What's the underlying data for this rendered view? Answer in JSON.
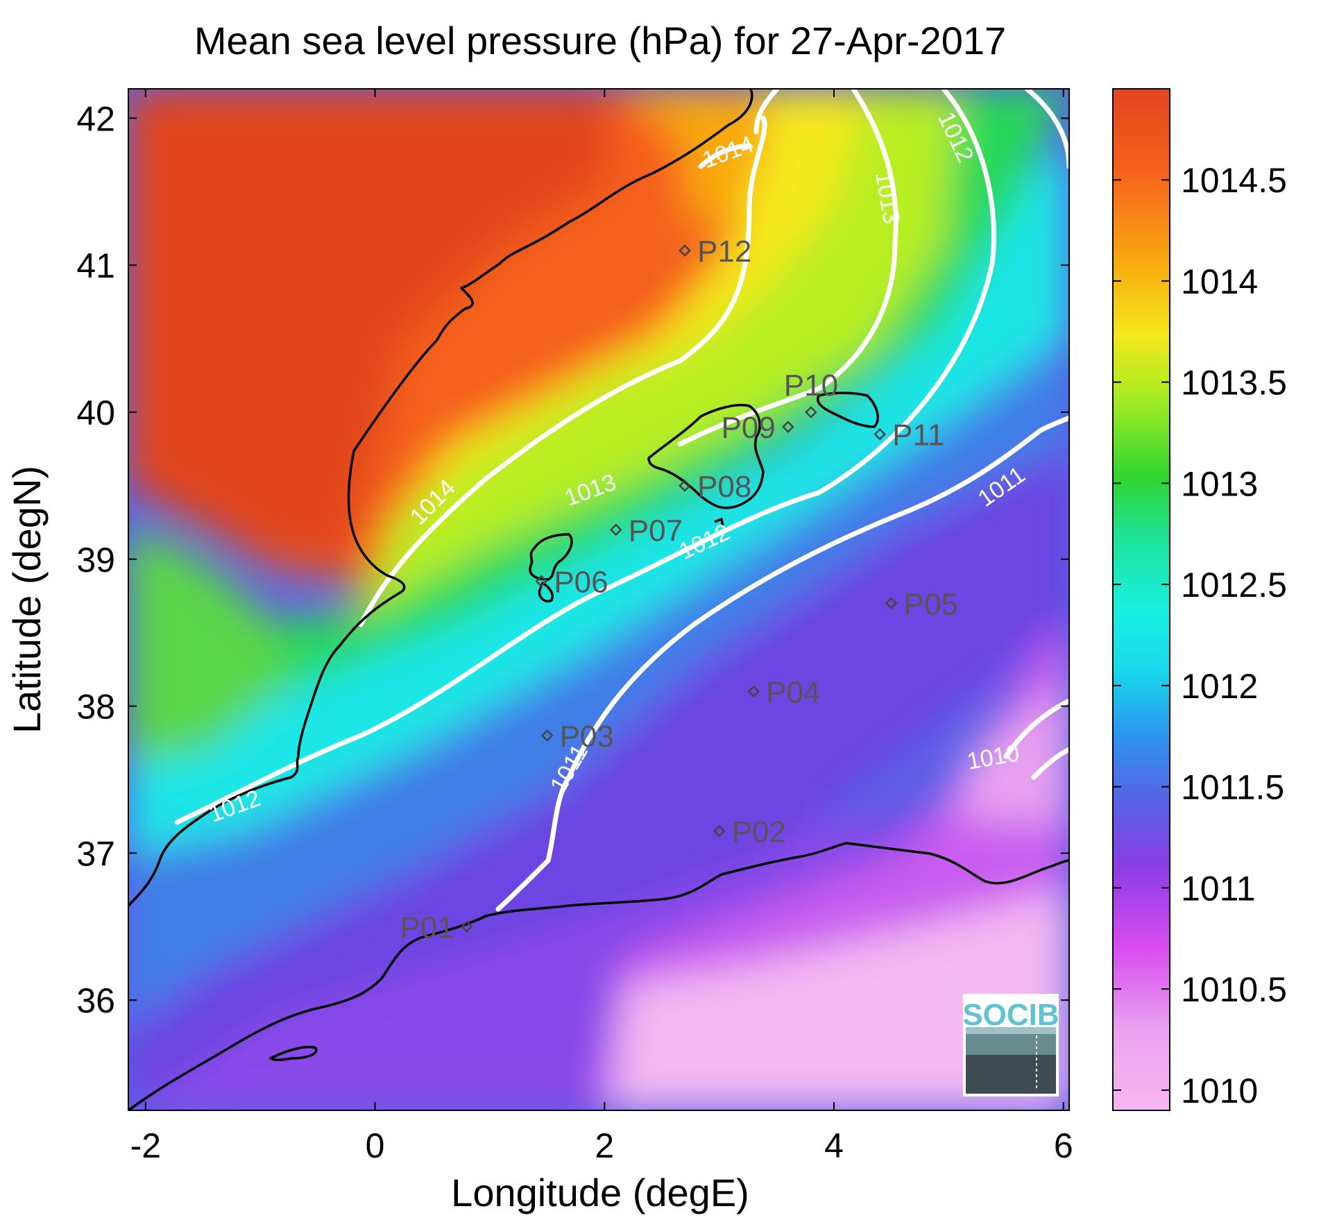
{
  "title": "Mean sea level pressure (hPa) for 27-Apr-2017",
  "xlabel": "Longitude (degE)",
  "ylabel": "Latitude (degN)",
  "x_ticks": [
    {
      "value": -2,
      "label": "-2"
    },
    {
      "value": 0,
      "label": "0"
    },
    {
      "value": 2,
      "label": "2"
    },
    {
      "value": 4,
      "label": "4"
    },
    {
      "value": 6,
      "label": "6"
    }
  ],
  "y_ticks": [
    {
      "value": 36,
      "label": "36"
    },
    {
      "value": 37,
      "label": "37"
    },
    {
      "value": 38,
      "label": "38"
    },
    {
      "value": 39,
      "label": "39"
    },
    {
      "value": 40,
      "label": "40"
    },
    {
      "value": 41,
      "label": "41"
    },
    {
      "value": 42,
      "label": "42"
    }
  ],
  "colorbar": {
    "range": [
      1009.9,
      1014.95
    ],
    "ticks": [
      {
        "value": 1010,
        "label": "1010"
      },
      {
        "value": 1010.5,
        "label": "1010.5"
      },
      {
        "value": 1011,
        "label": "1011"
      },
      {
        "value": 1011.5,
        "label": "1011.5"
      },
      {
        "value": 1012,
        "label": "1012"
      },
      {
        "value": 1012.5,
        "label": "1012.5"
      },
      {
        "value": 1013,
        "label": "1013"
      },
      {
        "value": 1013.5,
        "label": "1013.5"
      },
      {
        "value": 1014,
        "label": "1014"
      },
      {
        "value": 1014.5,
        "label": "1014.5"
      }
    ],
    "colors": [
      "#f7b6f2",
      "#d84bf0",
      "#7a3ee6",
      "#5b60e6",
      "#1ab6f0",
      "#19f0e2",
      "#1ed878",
      "#30d530",
      "#c8f020",
      "#f5e81a",
      "#f9a911",
      "#f5611c",
      "#e2461e"
    ]
  },
  "contour_labels": [
    {
      "text": "1014",
      "lon": 0.55,
      "lat": 39.35
    },
    {
      "text": "1014",
      "lon": 3.1,
      "lat": 41.72
    },
    {
      "text": "1013",
      "lon": 1.9,
      "lat": 39.42
    },
    {
      "text": "1013",
      "lon": 4.4,
      "lat": 41.45
    },
    {
      "text": "1012",
      "lon": -1.2,
      "lat": 37.27
    },
    {
      "text": "1012",
      "lon": 2.9,
      "lat": 39.07
    },
    {
      "text": "1012",
      "lon": 5.0,
      "lat": 41.85
    },
    {
      "text": "1011",
      "lon": 1.75,
      "lat": 37.55
    },
    {
      "text": "1011",
      "lon": 5.5,
      "lat": 39.45
    },
    {
      "text": "1010",
      "lon": 5.4,
      "lat": 37.6
    }
  ],
  "stations": [
    {
      "name": "P01",
      "lon": 0.8,
      "lat": 36.5
    },
    {
      "name": "P02",
      "lon": 3.0,
      "lat": 37.15
    },
    {
      "name": "P03",
      "lon": 1.5,
      "lat": 37.8
    },
    {
      "name": "P04",
      "lon": 3.3,
      "lat": 38.1
    },
    {
      "name": "P05",
      "lon": 4.5,
      "lat": 38.7
    },
    {
      "name": "P06",
      "lon": 1.45,
      "lat": 38.85
    },
    {
      "name": "P07",
      "lon": 2.1,
      "lat": 39.2
    },
    {
      "name": "P08",
      "lon": 2.7,
      "lat": 39.5
    },
    {
      "name": "P09",
      "lon": 3.6,
      "lat": 39.9
    },
    {
      "name": "P10",
      "lon": 3.8,
      "lat": 40.0
    },
    {
      "name": "P11",
      "lon": 4.4,
      "lat": 39.85
    },
    {
      "name": "P12",
      "lon": 2.7,
      "lat": 41.1
    }
  ],
  "logo": {
    "text": "SOCIB"
  }
}
